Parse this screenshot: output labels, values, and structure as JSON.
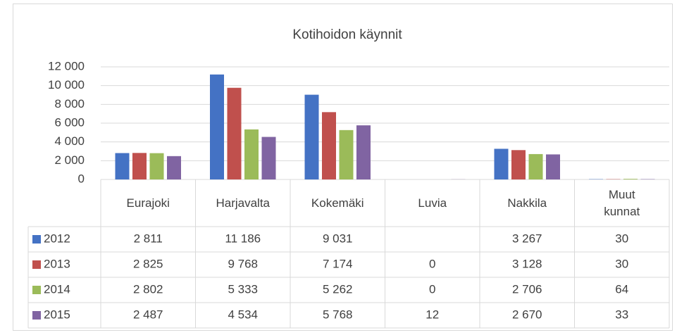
{
  "chart_data": {
    "type": "bar",
    "title": "Kotihoidon käynnit",
    "categories": [
      "Eurajoki",
      "Harjavalta",
      "Kokemäki",
      "Luvia",
      "Nakkila",
      "Muut kunnat"
    ],
    "series": [
      {
        "name": "2012",
        "color": "#4472c4",
        "values": [
          2811,
          11186,
          9031,
          null,
          3267,
          30
        ],
        "value_labels": [
          "2 811",
          "11 186",
          "9 031",
          null,
          "3 267",
          "30"
        ]
      },
      {
        "name": "2013",
        "color": "#c0504d",
        "values": [
          2825,
          9768,
          7174,
          0,
          3128,
          30
        ],
        "value_labels": [
          "2 825",
          "9 768",
          "7 174",
          "0",
          "3 128",
          "30"
        ]
      },
      {
        "name": "2014",
        "color": "#9bbb59",
        "values": [
          2802,
          5333,
          5262,
          0,
          2706,
          64
        ],
        "value_labels": [
          "2 802",
          "5 333",
          "5 262",
          "0",
          "2 706",
          "64"
        ]
      },
      {
        "name": "2015",
        "color": "#8064a2",
        "values": [
          2487,
          4534,
          5768,
          12,
          2670,
          33
        ],
        "value_labels": [
          "2 487",
          "4 534",
          "5 768",
          "12",
          "2 670",
          "33"
        ]
      }
    ],
    "ylim": [
      0,
      12000
    ],
    "yticks": [
      0,
      {
        "value": 2000,
        "label": "2 000"
      },
      {
        "value": 4000,
        "label": "4 000"
      },
      {
        "value": 6000,
        "label": "6 000"
      },
      {
        "value": 8000,
        "label": "8 000"
      },
      {
        "value": 10000,
        "label": "10 000"
      },
      {
        "value": 12000,
        "label": "12 000"
      }
    ],
    "grid": true
  }
}
